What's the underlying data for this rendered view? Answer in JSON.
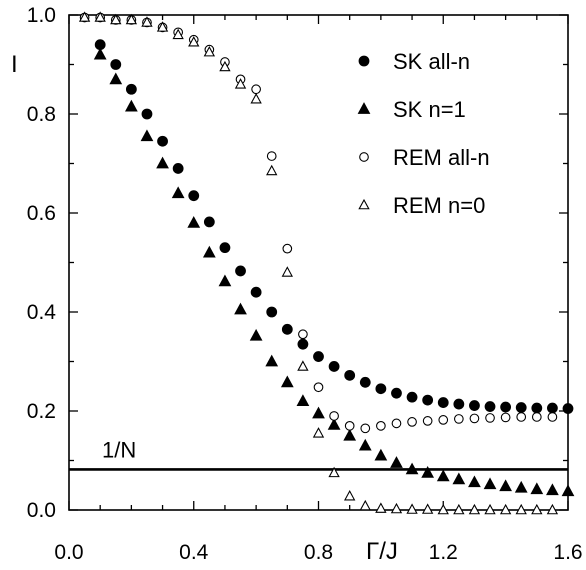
{
  "chart_data": {
    "type": "scatter",
    "xlabel": "Γ/J",
    "ylabel": "I",
    "xlim": [
      0.0,
      1.6
    ],
    "ylim": [
      0.0,
      1.0
    ],
    "x_ticks": [
      "0.0",
      "0.4",
      "0.8",
      "1.2",
      "1.6"
    ],
    "y_ticks": [
      "0.0",
      "0.2",
      "0.4",
      "0.6",
      "0.8",
      "1.0"
    ],
    "grid": false,
    "legend_position": "top-right",
    "series": [
      {
        "name": "SK all-n",
        "marker": "filled-circle",
        "points": [
          [
            0.1,
            0.94
          ],
          [
            0.15,
            0.9
          ],
          [
            0.2,
            0.85
          ],
          [
            0.25,
            0.8
          ],
          [
            0.3,
            0.745
          ],
          [
            0.35,
            0.69
          ],
          [
            0.4,
            0.635
          ],
          [
            0.45,
            0.582
          ],
          [
            0.5,
            0.53
          ],
          [
            0.55,
            0.483
          ],
          [
            0.6,
            0.44
          ],
          [
            0.65,
            0.4
          ],
          [
            0.7,
            0.365
          ],
          [
            0.75,
            0.335
          ],
          [
            0.8,
            0.31
          ],
          [
            0.85,
            0.29
          ],
          [
            0.9,
            0.272
          ],
          [
            0.95,
            0.258
          ],
          [
            1.0,
            0.245
          ],
          [
            1.05,
            0.236
          ],
          [
            1.1,
            0.228
          ],
          [
            1.15,
            0.222
          ],
          [
            1.2,
            0.217
          ],
          [
            1.25,
            0.214
          ],
          [
            1.3,
            0.211
          ],
          [
            1.35,
            0.209
          ],
          [
            1.4,
            0.208
          ],
          [
            1.45,
            0.207
          ],
          [
            1.5,
            0.206
          ],
          [
            1.55,
            0.206
          ],
          [
            1.6,
            0.205
          ]
        ]
      },
      {
        "name": "SK n=1",
        "marker": "filled-triangle",
        "points": [
          [
            0.1,
            0.92
          ],
          [
            0.15,
            0.87
          ],
          [
            0.2,
            0.815
          ],
          [
            0.25,
            0.755
          ],
          [
            0.3,
            0.7
          ],
          [
            0.35,
            0.64
          ],
          [
            0.4,
            0.58
          ],
          [
            0.45,
            0.52
          ],
          [
            0.5,
            0.462
          ],
          [
            0.55,
            0.405
          ],
          [
            0.6,
            0.352
          ],
          [
            0.65,
            0.3
          ],
          [
            0.7,
            0.258
          ],
          [
            0.75,
            0.22
          ],
          [
            0.8,
            0.195
          ],
          [
            0.85,
            0.172
          ],
          [
            0.9,
            0.15
          ],
          [
            0.95,
            0.13
          ],
          [
            1.0,
            0.11
          ],
          [
            1.05,
            0.095
          ],
          [
            1.1,
            0.082
          ],
          [
            1.15,
            0.075
          ],
          [
            1.2,
            0.068
          ],
          [
            1.25,
            0.062
          ],
          [
            1.3,
            0.056
          ],
          [
            1.35,
            0.052
          ],
          [
            1.4,
            0.048
          ],
          [
            1.45,
            0.045
          ],
          [
            1.5,
            0.042
          ],
          [
            1.55,
            0.04
          ],
          [
            1.6,
            0.038
          ]
        ]
      },
      {
        "name": "REM all-n",
        "marker": "open-circle",
        "points": [
          [
            0.05,
            0.995
          ],
          [
            0.1,
            0.995
          ],
          [
            0.15,
            0.99
          ],
          [
            0.2,
            0.99
          ],
          [
            0.25,
            0.985
          ],
          [
            0.3,
            0.975
          ],
          [
            0.35,
            0.965
          ],
          [
            0.4,
            0.95
          ],
          [
            0.45,
            0.93
          ],
          [
            0.5,
            0.905
          ],
          [
            0.55,
            0.87
          ],
          [
            0.6,
            0.85
          ],
          [
            0.65,
            0.715
          ],
          [
            0.7,
            0.528
          ],
          [
            0.75,
            0.355
          ],
          [
            0.8,
            0.248
          ],
          [
            0.85,
            0.19
          ],
          [
            0.9,
            0.17
          ],
          [
            0.95,
            0.165
          ],
          [
            1.0,
            0.17
          ],
          [
            1.05,
            0.175
          ],
          [
            1.1,
            0.178
          ],
          [
            1.15,
            0.18
          ],
          [
            1.2,
            0.182
          ],
          [
            1.25,
            0.184
          ],
          [
            1.3,
            0.185
          ],
          [
            1.35,
            0.186
          ],
          [
            1.4,
            0.187
          ],
          [
            1.45,
            0.188
          ],
          [
            1.5,
            0.188
          ],
          [
            1.55,
            0.188
          ]
        ]
      },
      {
        "name": "REM n=0",
        "marker": "open-triangle",
        "points": [
          [
            0.05,
            0.995
          ],
          [
            0.1,
            0.995
          ],
          [
            0.15,
            0.99
          ],
          [
            0.2,
            0.99
          ],
          [
            0.25,
            0.985
          ],
          [
            0.3,
            0.975
          ],
          [
            0.35,
            0.96
          ],
          [
            0.4,
            0.945
          ],
          [
            0.45,
            0.925
          ],
          [
            0.5,
            0.895
          ],
          [
            0.55,
            0.86
          ],
          [
            0.6,
            0.83
          ],
          [
            0.65,
            0.685
          ],
          [
            0.7,
            0.48
          ],
          [
            0.75,
            0.29
          ],
          [
            0.8,
            0.155
          ],
          [
            0.85,
            0.075
          ],
          [
            0.9,
            0.028
          ],
          [
            0.95,
            0.008
          ],
          [
            1.0,
            0.003
          ],
          [
            1.05,
            0.002
          ],
          [
            1.1,
            0.001
          ],
          [
            1.15,
            0.001
          ],
          [
            1.2,
            0.0
          ],
          [
            1.25,
            0.0
          ],
          [
            1.3,
            0.0
          ],
          [
            1.35,
            0.0
          ],
          [
            1.4,
            0.0
          ],
          [
            1.45,
            0.0
          ],
          [
            1.5,
            0.0
          ],
          [
            1.55,
            0.0
          ]
        ]
      }
    ],
    "reference_line": {
      "label": "1/N",
      "y": 0.082
    }
  }
}
